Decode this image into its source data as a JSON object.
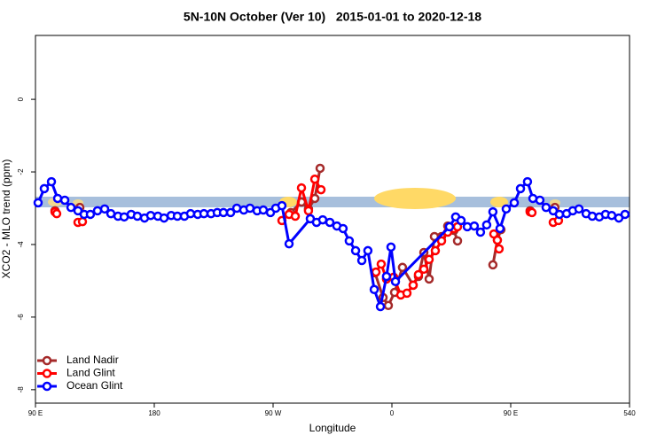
{
  "chart_data": {
    "type": "line",
    "title": "5N-10N October (Ver 10)   2015-01-01 to 2020-12-18",
    "x_label": "Longitude",
    "y_label": "XCO2 - MLO trend (ppm)",
    "xlim": [
      90,
      540
    ],
    "ylim": [
      -8.37,
      1.76
    ],
    "xticks": [
      {
        "value": 90,
        "label": "90 E"
      },
      180,
      {
        "value": 270,
        "label": "90 W"
      },
      {
        "value": 360,
        "label": "0"
      },
      {
        "value": 450,
        "label": "90 E"
      },
      540
    ],
    "yticks": [
      0,
      -2,
      -4,
      -6,
      -8
    ],
    "legend": "bottom-left",
    "series": [
      {
        "name": "Land Nadir",
        "color": "#a52a2a",
        "x": [
          104.8,
          null,
          123.6,
          null,
          283.4,
          291.5,
          296.8,
          301.6,
          305.6,
          null,
          347.2,
          353.3,
          357.3,
          362.0,
          368.0,
          376.1,
          380.1,
          384.2,
          388.2,
          392.2,
          397.6,
          402.3,
          407.0,
          409.7,
          null,
          436.5,
          439.9,
          442.6,
          null,
          464.7,
          null,
          483.5
        ],
        "values": [
          -3.07,
          null,
          -2.98,
          null,
          -3.12,
          -2.83,
          -3.02,
          -2.73,
          -1.9,
          null,
          -4.78,
          -5.46,
          -5.68,
          -5.32,
          -4.63,
          -5.12,
          -4.88,
          -4.22,
          -4.95,
          -3.78,
          -3.78,
          -3.49,
          -3.61,
          -3.9,
          null,
          -4.56,
          -3.88,
          -3.59,
          null,
          -3.07,
          null,
          -2.98
        ]
      },
      {
        "name": "Land Glint",
        "color": "#ff0000",
        "x": [
          104.8,
          106.1,
          null,
          122.2,
          125.6,
          null,
          276.7,
          282.1,
          286.8,
          291.5,
          296.8,
          301.6,
          306.3,
          null,
          347.9,
          351.9,
          355.9,
          361.3,
          366.7,
          371.4,
          376.1,
          380.1,
          384.2,
          388.2,
          392.9,
          397.6,
          402.3,
          407.0,
          409.7,
          null,
          437.2,
          439.9,
          441.2,
          null,
          464.7,
          466.1,
          null,
          482.2,
          486.2
        ],
        "values": [
          -3.1,
          -3.15,
          null,
          -3.39,
          -3.37,
          null,
          -3.34,
          -3.17,
          -3.22,
          -2.44,
          -3.07,
          -2.2,
          -2.49,
          null,
          -4.76,
          -4.54,
          -4.95,
          -4.9,
          -5.39,
          -5.34,
          -5.12,
          -4.83,
          -4.68,
          -4.41,
          -4.17,
          -3.9,
          -3.66,
          -3.56,
          -3.51,
          null,
          -3.71,
          -3.88,
          -4.12,
          null,
          -3.1,
          -3.12,
          null,
          -3.39,
          -3.34
        ]
      },
      {
        "name": "Ocean Glint",
        "color": "#0000ff",
        "x": [
          92.0,
          96.7,
          102.1,
          106.8,
          112.2,
          116.9,
          122.2,
          126.9,
          131.6,
          137.0,
          142.4,
          147.1,
          152.5,
          157.2,
          162.5,
          167.2,
          172.6,
          177.3,
          182.7,
          187.4,
          192.8,
          197.5,
          202.8,
          207.5,
          212.9,
          217.6,
          223.0,
          227.7,
          232.4,
          237.8,
          242.5,
          247.8,
          252.5,
          257.9,
          262.6,
          268.0,
          272.0,
          276.7,
          282.1,
          298.2,
          302.9,
          307.6,
          313.0,
          318.3,
          323.0,
          327.7,
          332.5,
          337.2,
          341.8,
          346.6,
          351.3,
          355.9,
          359.3,
          362.7,
          403.6,
          408.3,
          412.4,
          417.1,
          422.4,
          427.1,
          431.8,
          436.5,
          441.9,
          446.6,
          452.7,
          457.4,
          462.7,
          466.8,
          472.1,
          476.8,
          482.2,
          486.9,
          492.3,
          497.0,
          501.7,
          507.1,
          511.8,
          517.1,
          521.8,
          526.5,
          531.9,
          536.6
        ],
        "values": [
          -2.85,
          -2.46,
          -2.27,
          -2.73,
          -2.78,
          -2.98,
          -3.07,
          -3.17,
          -3.17,
          -3.07,
          -3.02,
          -3.15,
          -3.22,
          -3.24,
          -3.17,
          -3.22,
          -3.27,
          -3.2,
          -3.22,
          -3.27,
          -3.2,
          -3.22,
          -3.22,
          -3.15,
          -3.17,
          -3.15,
          -3.15,
          -3.12,
          -3.12,
          -3.12,
          -3.0,
          -3.05,
          -3.0,
          -3.07,
          -3.05,
          -3.12,
          -3.0,
          -2.93,
          -3.98,
          -3.29,
          -3.39,
          -3.32,
          -3.39,
          -3.49,
          -3.56,
          -3.9,
          -4.17,
          -4.44,
          -4.17,
          -5.24,
          -5.71,
          -4.88,
          -4.07,
          -5.02,
          -3.51,
          -3.24,
          -3.34,
          -3.51,
          -3.49,
          -3.66,
          -3.46,
          -3.1,
          -3.56,
          -3.02,
          -2.85,
          -2.46,
          -2.27,
          -2.73,
          -2.78,
          -2.98,
          -3.07,
          -3.17,
          -3.15,
          -3.07,
          -3.02,
          -3.15,
          -3.22,
          -3.24,
          -3.17,
          -3.2,
          -3.27,
          -3.17
        ]
      }
    ]
  }
}
